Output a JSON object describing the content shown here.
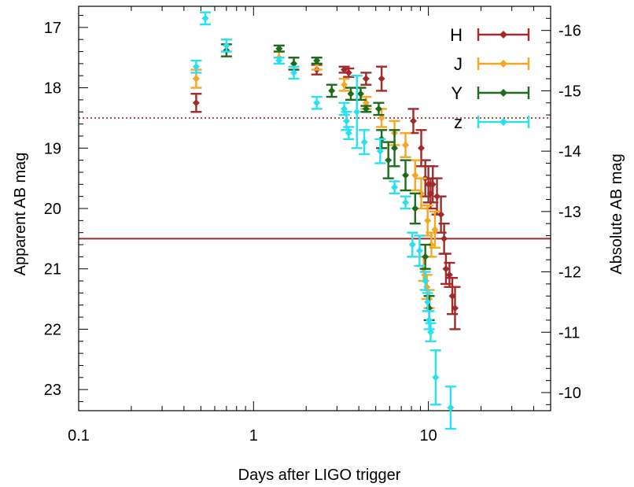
{
  "chart_data": {
    "type": "scatter",
    "xlabel": "Days after LIGO trigger",
    "ylabel": "Apparent AB mag",
    "y2label": "Absolute AB mag",
    "xscale": "log",
    "xlim": [
      0.1,
      50
    ],
    "ylim": [
      23.35,
      16.65
    ],
    "x_ticks": [
      0.1,
      1,
      10
    ],
    "x_tick_labels": [
      "0.1",
      "1",
      "10"
    ],
    "y_ticks": [
      17,
      18,
      19,
      20,
      21,
      22,
      23
    ],
    "y_tick_labels": [
      "17",
      "18",
      "19",
      "20",
      "21",
      "22",
      "23"
    ],
    "y2_ticks": [
      -16,
      -15,
      -14,
      -13,
      -12,
      -11,
      -10
    ],
    "y2_tick_labels": [
      "-16",
      "-15",
      "-14",
      "-13",
      "-12",
      "-11",
      "-10"
    ],
    "y2_offset": 33.05,
    "legend_position": "top-right",
    "grid": false,
    "reference_lines": [
      {
        "y": 18.5,
        "style": "dotted",
        "color": "#9b2a2a"
      },
      {
        "y": 20.5,
        "style": "solid",
        "color": "#9b2a2a"
      }
    ],
    "series": [
      {
        "name": "H",
        "color": "#a12b2b",
        "points": [
          {
            "x": 0.47,
            "y": 18.25,
            "err": 0.15
          },
          {
            "x": 2.3,
            "y": 17.7,
            "err": 0.08
          },
          {
            "x": 3.3,
            "y": 17.7,
            "err": 0.05
          },
          {
            "x": 3.5,
            "y": 17.75,
            "err": 0.07
          },
          {
            "x": 4.4,
            "y": 17.85,
            "err": 0.1
          },
          {
            "x": 5.4,
            "y": 17.85,
            "err": 0.2
          },
          {
            "x": 8.2,
            "y": 18.55,
            "err": 0.2
          },
          {
            "x": 9.1,
            "y": 19.0,
            "err": 0.3
          },
          {
            "x": 9.6,
            "y": 19.5,
            "err": 0.3
          },
          {
            "x": 10.0,
            "y": 19.6,
            "err": 0.3
          },
          {
            "x": 10.3,
            "y": 19.75,
            "err": 0.25
          },
          {
            "x": 10.6,
            "y": 19.6,
            "err": 0.3
          },
          {
            "x": 11.2,
            "y": 19.8,
            "err": 0.3
          },
          {
            "x": 11.8,
            "y": 20.1,
            "err": 0.3
          },
          {
            "x": 12.3,
            "y": 20.5,
            "err": 0.25
          },
          {
            "x": 12.6,
            "y": 21.0,
            "err": 0.25
          },
          {
            "x": 13.2,
            "y": 21.1,
            "err": 0.2
          },
          {
            "x": 13.7,
            "y": 21.45,
            "err": 0.3
          },
          {
            "x": 14.2,
            "y": 21.65,
            "err": 0.35
          }
        ]
      },
      {
        "name": "J",
        "color": "#f5a623",
        "points": [
          {
            "x": 0.47,
            "y": 17.85,
            "err": 0.15
          },
          {
            "x": 1.4,
            "y": 17.5,
            "err": 0.1
          },
          {
            "x": 2.3,
            "y": 17.6,
            "err": 0.1
          },
          {
            "x": 3.3,
            "y": 17.95,
            "err": 0.1
          },
          {
            "x": 4.4,
            "y": 18.25,
            "err": 0.1
          },
          {
            "x": 5.4,
            "y": 18.5,
            "err": 0.15
          },
          {
            "x": 6.4,
            "y": 18.75,
            "err": 0.2
          },
          {
            "x": 7.4,
            "y": 18.95,
            "err": 0.2
          },
          {
            "x": 8.4,
            "y": 19.45,
            "err": 0.25
          },
          {
            "x": 9.1,
            "y": 19.75,
            "err": 0.25
          },
          {
            "x": 9.9,
            "y": 20.2,
            "err": 0.25
          },
          {
            "x": 10.4,
            "y": 20.6,
            "err": 0.2
          },
          {
            "x": 10.9,
            "y": 20.35,
            "err": 0.3
          },
          {
            "x": 9.4,
            "y": 21.0,
            "err": 0.2
          },
          {
            "x": 9.8,
            "y": 21.3,
            "err": 0.2
          },
          {
            "x": 10.1,
            "y": 21.5,
            "err": 0.15
          }
        ]
      },
      {
        "name": "Y",
        "color": "#1e6b1e",
        "points": [
          {
            "x": 0.7,
            "y": 17.38,
            "err": 0.1
          },
          {
            "x": 1.4,
            "y": 17.35,
            "err": 0.05
          },
          {
            "x": 1.7,
            "y": 17.6,
            "err": 0.1
          },
          {
            "x": 2.3,
            "y": 17.55,
            "err": 0.05
          },
          {
            "x": 2.8,
            "y": 18.05,
            "err": 0.1
          },
          {
            "x": 3.6,
            "y": 18.1,
            "err": 0.1
          },
          {
            "x": 4.1,
            "y": 18.1,
            "err": 0.1
          },
          {
            "x": 4.4,
            "y": 18.35,
            "err": 0.05
          },
          {
            "x": 5.2,
            "y": 18.35,
            "err": 0.1
          },
          {
            "x": 5.4,
            "y": 18.85,
            "err": 0.15
          },
          {
            "x": 5.9,
            "y": 19.2,
            "err": 0.3
          },
          {
            "x": 6.4,
            "y": 19.0,
            "err": 0.3
          },
          {
            "x": 7.4,
            "y": 19.45,
            "err": 0.25
          },
          {
            "x": 8.4,
            "y": 20.0,
            "err": 0.25
          },
          {
            "x": 9.6,
            "y": 20.8,
            "err": 0.2
          },
          {
            "x": 10.1,
            "y": 21.65,
            "err": 0.2
          }
        ]
      },
      {
        "name": "z",
        "color": "#29e0f0",
        "points": [
          {
            "x": 0.47,
            "y": 17.65,
            "err": 0.1
          },
          {
            "x": 0.53,
            "y": 16.85,
            "err": 0.1
          },
          {
            "x": 0.7,
            "y": 17.3,
            "err": 0.1
          },
          {
            "x": 1.4,
            "y": 17.55,
            "err": 0.05
          },
          {
            "x": 1.7,
            "y": 17.75,
            "err": 0.1
          },
          {
            "x": 2.3,
            "y": 18.25,
            "err": 0.1
          },
          {
            "x": 3.3,
            "y": 18.35,
            "err": 0.1
          },
          {
            "x": 3.4,
            "y": 18.55,
            "err": 0.15
          },
          {
            "x": 3.5,
            "y": 18.75,
            "err": 0.1
          },
          {
            "x": 3.9,
            "y": 18.4,
            "err": 0.6
          },
          {
            "x": 4.3,
            "y": 18.9,
            "err": 0.2
          },
          {
            "x": 5.3,
            "y": 19.05,
            "err": 0.2
          },
          {
            "x": 6.4,
            "y": 19.65,
            "err": 0.1
          },
          {
            "x": 7.4,
            "y": 19.9,
            "err": 0.1
          },
          {
            "x": 8.1,
            "y": 20.6,
            "err": 0.2
          },
          {
            "x": 8.9,
            "y": 20.7,
            "err": 0.25
          },
          {
            "x": 9.6,
            "y": 21.2,
            "err": 0.15
          },
          {
            "x": 9.9,
            "y": 21.55,
            "err": 0.15
          },
          {
            "x": 10.1,
            "y": 21.85,
            "err": 0.15
          },
          {
            "x": 10.3,
            "y": 22.05,
            "err": 0.15
          },
          {
            "x": 11.0,
            "y": 22.8,
            "err": 0.45
          },
          {
            "x": 13.4,
            "y": 23.3,
            "err": 0.35
          }
        ]
      }
    ]
  }
}
